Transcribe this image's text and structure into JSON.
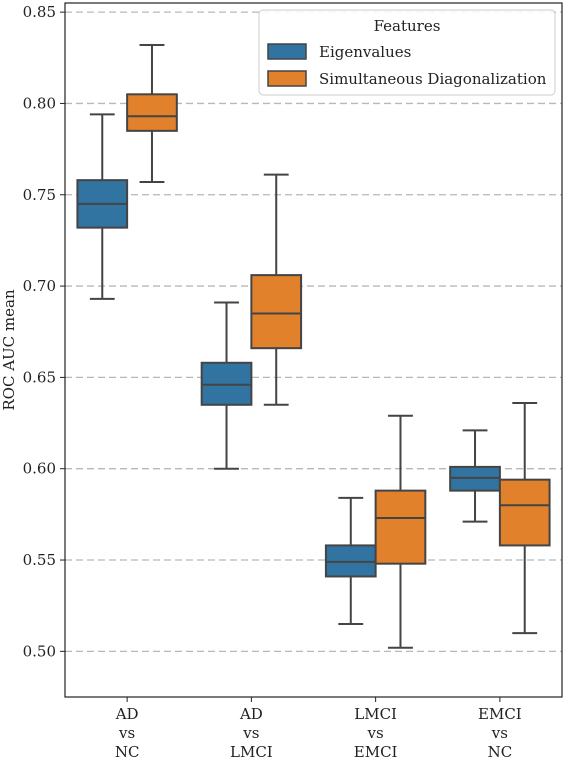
{
  "chart_data": {
    "type": "boxplot",
    "ylabel": "ROC AUC mean",
    "xlabel": "",
    "ylim": [
      0.475,
      0.855
    ],
    "yticks": [
      "0.50",
      "0.55",
      "0.60",
      "0.65",
      "0.70",
      "0.75",
      "0.80",
      "0.85"
    ],
    "grid": "horizontal-dashed",
    "legend": {
      "title": "Features",
      "placement": "top-right",
      "entries": [
        "Eigenvalues",
        "Simultaneous Diagonalization"
      ]
    },
    "categories": [
      [
        "AD",
        "vs",
        "NC"
      ],
      [
        "AD",
        "vs",
        "LMCI"
      ],
      [
        "LMCI",
        "vs",
        "EMCI"
      ],
      [
        "EMCI",
        "vs",
        "NC"
      ]
    ],
    "series": [
      {
        "name": "Eigenvalues",
        "color": "#3274a1",
        "boxes": [
          {
            "whisker_low": 0.693,
            "q1": 0.732,
            "median": 0.745,
            "q3": 0.758,
            "whisker_high": 0.794
          },
          {
            "whisker_low": 0.6,
            "q1": 0.635,
            "median": 0.646,
            "q3": 0.658,
            "whisker_high": 0.691
          },
          {
            "whisker_low": 0.515,
            "q1": 0.541,
            "median": 0.549,
            "q3": 0.558,
            "whisker_high": 0.584
          },
          {
            "whisker_low": 0.571,
            "q1": 0.588,
            "median": 0.595,
            "q3": 0.601,
            "whisker_high": 0.621
          }
        ]
      },
      {
        "name": "Simultaneous Diagonalization",
        "color": "#e1812c",
        "boxes": [
          {
            "whisker_low": 0.757,
            "q1": 0.785,
            "median": 0.793,
            "q3": 0.805,
            "whisker_high": 0.832
          },
          {
            "whisker_low": 0.635,
            "q1": 0.666,
            "median": 0.685,
            "q3": 0.706,
            "whisker_high": 0.761
          },
          {
            "whisker_low": 0.502,
            "q1": 0.548,
            "median": 0.573,
            "q3": 0.588,
            "whisker_high": 0.629
          },
          {
            "whisker_low": 0.51,
            "q1": 0.558,
            "median": 0.58,
            "q3": 0.594,
            "whisker_high": 0.636
          }
        ]
      }
    ]
  }
}
